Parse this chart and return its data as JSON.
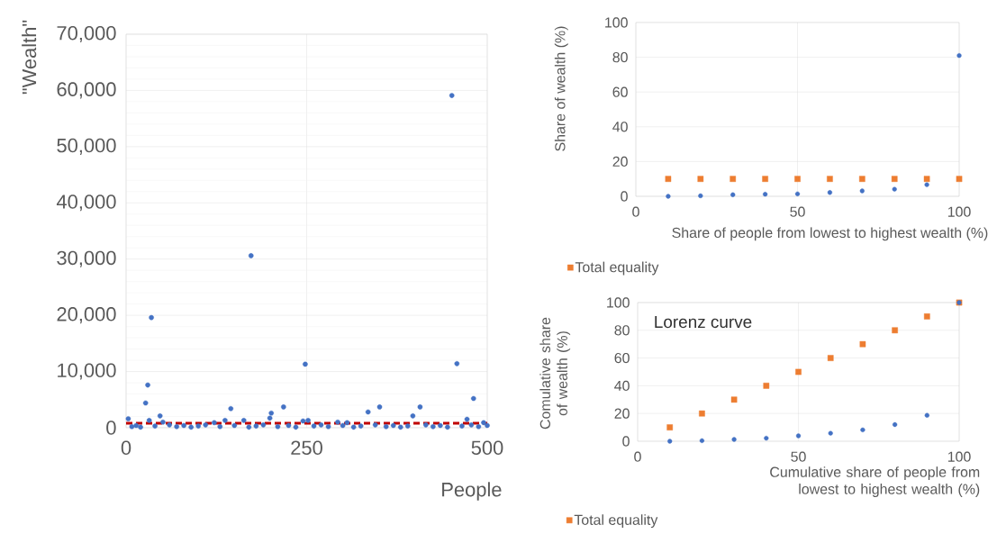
{
  "chart_data": [
    {
      "type": "scatter",
      "xlabel": "People",
      "ylabel": "\"Wealth\"",
      "xlim": [
        0,
        500
      ],
      "ylim": [
        0,
        70000
      ],
      "xticks": [
        0,
        250,
        500
      ],
      "yticks": [
        {
          "value": 0,
          "label": "0"
        },
        {
          "value": 10000,
          "label": "10,000"
        },
        {
          "value": 20000,
          "label": "20,000"
        },
        {
          "value": 30000,
          "label": "30,000"
        },
        {
          "value": 40000,
          "label": "40,000"
        },
        {
          "value": 50000,
          "label": "50,000"
        },
        {
          "value": 60000,
          "label": "60,000"
        },
        {
          "value": 70000,
          "label": "70,000"
        }
      ],
      "grid": true,
      "marker": "circle",
      "series": [
        {
          "color": "#4472c4",
          "x": [
            3,
            8,
            14,
            20,
            27,
            30,
            32,
            35,
            40,
            47,
            51,
            60,
            70,
            80,
            90,
            100,
            110,
            122,
            130,
            137,
            145,
            150,
            163,
            170,
            173,
            180,
            190,
            199,
            201,
            210,
            218,
            225,
            235,
            245,
            248,
            252,
            260,
            270,
            280,
            293,
            300,
            306,
            315,
            325,
            335,
            345,
            351,
            360,
            370,
            380,
            390,
            397,
            407,
            415,
            425,
            435,
            445,
            451,
            458,
            465,
            472,
            478,
            481,
            488,
            495,
            500
          ],
          "values": [
            1600,
            200,
            400,
            100,
            4400,
            7600,
            1300,
            19600,
            300,
            2100,
            1000,
            500,
            200,
            400,
            100,
            300,
            500,
            900,
            200,
            1300,
            3400,
            400,
            1300,
            100,
            30600,
            300,
            500,
            1700,
            2600,
            200,
            3700,
            400,
            100,
            1200,
            11300,
            1300,
            300,
            500,
            200,
            1000,
            400,
            900,
            100,
            300,
            2800,
            500,
            3700,
            200,
            400,
            100,
            300,
            2100,
            3700,
            500,
            200,
            400,
            100,
            59100,
            11400,
            300,
            1500,
            500,
            5200,
            200,
            900,
            400
          ]
        }
      ],
      "ref_lines": [
        {
          "axis": "y",
          "value": 800,
          "color": "#c00000",
          "line_style": "dashed"
        }
      ]
    },
    {
      "type": "scatter",
      "xlabel": "Share of people from lowest to highest wealth (%)",
      "ylabel": "Share of wealth (%)",
      "xlim": [
        0,
        100
      ],
      "ylim": [
        0,
        100
      ],
      "xticks": [
        0,
        50,
        100
      ],
      "yticks": [
        0,
        20,
        40,
        60,
        80,
        100
      ],
      "grid": true,
      "legend": "bottom left",
      "x": [
        10,
        20,
        30,
        40,
        50,
        60,
        70,
        80,
        90,
        100
      ],
      "series": [
        {
          "color": "#4472c4",
          "marker": "circle",
          "values": [
            0,
            0.3,
            0.9,
            1.2,
            1.4,
            2.2,
            3.1,
            4.1,
            6.7,
            81
          ]
        },
        {
          "name": "Total equality",
          "color": "#ed7d31",
          "marker": "square",
          "values": [
            10,
            10,
            10,
            10,
            10,
            10,
            10,
            10,
            10,
            10
          ]
        }
      ]
    },
    {
      "type": "scatter",
      "xlabel": "Cumulative share of people from lowest to highest wealth (%)",
      "ylabel": "Comulative share of wealth (%)",
      "xlim": [
        0,
        100
      ],
      "ylim": [
        0,
        100
      ],
      "xticks": [
        0,
        50,
        100
      ],
      "yticks": [
        0,
        20,
        40,
        60,
        80,
        100
      ],
      "grid": true,
      "legend": "bottom left",
      "annotations": [
        "Lorenz curve"
      ],
      "x": [
        10,
        20,
        30,
        40,
        50,
        60,
        70,
        80,
        90,
        100
      ],
      "series": [
        {
          "color": "#4472c4",
          "marker": "circle",
          "values": [
            0,
            0.4,
            1.3,
            2.2,
            3.9,
            5.8,
            8.2,
            12,
            18.7,
            100
          ]
        },
        {
          "name": "Total equality",
          "color": "#ed7d31",
          "marker": "square",
          "values": [
            10,
            20,
            30,
            40,
            50,
            60,
            70,
            80,
            90,
            100
          ]
        }
      ]
    }
  ]
}
